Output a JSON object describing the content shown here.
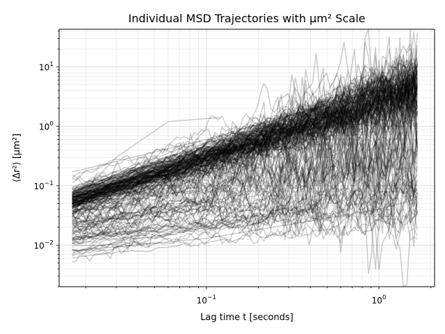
{
  "chart_data": {
    "type": "line",
    "title": "Individual MSD Trajectories with μm² Scale",
    "xlabel": "Lag time t [seconds]",
    "ylabel": "⟨Δr²⟩ [μm²]",
    "xscale": "log",
    "yscale": "log",
    "xlim": [
      0.014,
      2.1
    ],
    "ylim": [
      0.002,
      43
    ],
    "grid": "major and minor",
    "line_color": "#000000",
    "line_opacity": 0.2,
    "x_ticks": [
      {
        "value": 0.1,
        "base": "10",
        "exp": "−1"
      },
      {
        "value": 1,
        "base": "10",
        "exp": "0"
      }
    ],
    "y_ticks": [
      {
        "value": 0.01,
        "base": "10",
        "exp": "−2"
      },
      {
        "value": 0.1,
        "base": "10",
        "exp": "−1"
      },
      {
        "value": 1,
        "base": "10",
        "exp": "0"
      },
      {
        "value": 10,
        "base": "10",
        "exp": "1"
      }
    ],
    "lag_time_start": 0.01667,
    "lag_time_end": 1.667,
    "series_count": 210,
    "representative_series": [
      {
        "x": [
          0.01667,
          0.1,
          1.0,
          1.667
        ],
        "y": [
          0.05,
          0.3,
          2.8,
          5.5
        ]
      },
      {
        "x": [
          0.01667,
          0.1,
          1.0,
          1.667
        ],
        "y": [
          0.17,
          0.6,
          4.0,
          7.0
        ]
      },
      {
        "x": [
          0.01667,
          0.1,
          1.0,
          1.667
        ],
        "y": [
          0.008,
          0.013,
          0.04,
          0.06
        ]
      },
      {
        "x": [
          0.01667,
          0.03,
          0.06,
          0.12
        ],
        "y": [
          0.05,
          0.3,
          1.2,
          1.4
        ]
      }
    ]
  }
}
